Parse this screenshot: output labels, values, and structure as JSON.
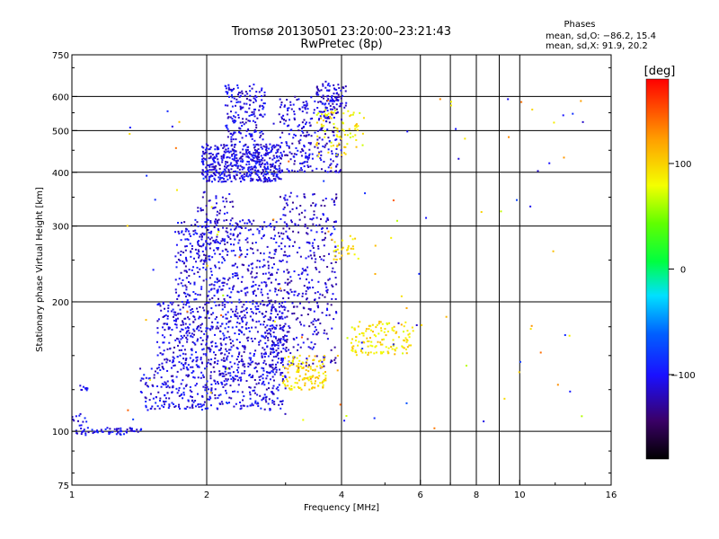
{
  "chart_data": {
    "type": "scatter",
    "title": "Tromsø 20130501 23:20:00–23:21:43",
    "subtitle": "RwPretec (8p)",
    "phases_title": "Phases",
    "phases_o": "mean, sd,O: −86.2, 15.4",
    "phases_x": "mean, sd,X:  91.9, 20.2",
    "xlabel": "Frequency [MHz]",
    "ylabel": "Stationary phase Virtual Height [km]",
    "x_scale": "log",
    "y_scale": "log",
    "xlim": [
      1,
      16
    ],
    "ylim": [
      75,
      750
    ],
    "grid": true,
    "x_ticks": [
      {
        "value": 1,
        "label": "1"
      },
      {
        "value": 2,
        "label": "2"
      },
      {
        "value": 4,
        "label": "4"
      },
      {
        "value": 6,
        "label": "6"
      },
      {
        "value": 8,
        "label": "8"
      },
      {
        "value": 10,
        "label": "10"
      },
      {
        "value": 16,
        "label": "16"
      }
    ],
    "x_grid_values": [
      2,
      4,
      6,
      7,
      8,
      9,
      10
    ],
    "y_ticks": [
      {
        "value": 75,
        "label": "75"
      },
      {
        "value": 100,
        "label": "100"
      },
      {
        "value": 200,
        "label": "200"
      },
      {
        "value": 300,
        "label": "300"
      },
      {
        "value": 400,
        "label": "400"
      },
      {
        "value": 500,
        "label": "500"
      },
      {
        "value": 600,
        "label": "600"
      },
      {
        "value": 750,
        "label": "750"
      }
    ],
    "y_grid_values": [
      100,
      200,
      300,
      400,
      500,
      600
    ],
    "colorbar": {
      "label": "[deg]",
      "range": [
        -180,
        180
      ],
      "ticks": [
        {
          "value": 100,
          "label": "100"
        },
        {
          "value": 0,
          "label": "0"
        },
        {
          "value": -100,
          "label": "−100"
        }
      ]
    },
    "clusters": [
      {
        "fmin": 1.02,
        "fmax": 1.45,
        "hmin": 98,
        "hmax": 102,
        "phase": -105,
        "count": 60
      },
      {
        "fmin": 1.0,
        "fmax": 1.08,
        "hmin": 103,
        "hmax": 110,
        "phase": -105,
        "count": 12
      },
      {
        "fmin": 1.04,
        "fmax": 1.1,
        "hmin": 124,
        "hmax": 128,
        "phase": -105,
        "count": 10
      },
      {
        "fmin": 1.42,
        "fmax": 3.0,
        "hmin": 112,
        "hmax": 140,
        "phase": -108,
        "count": 380
      },
      {
        "fmin": 1.55,
        "fmax": 3.0,
        "hmin": 140,
        "hmax": 200,
        "phase": -110,
        "count": 650
      },
      {
        "fmin": 1.7,
        "fmax": 2.9,
        "hmin": 200,
        "hmax": 310,
        "phase": -110,
        "count": 420
      },
      {
        "fmin": 1.9,
        "fmax": 2.3,
        "hmin": 250,
        "hmax": 360,
        "phase": -112,
        "count": 90
      },
      {
        "fmin": 2.9,
        "fmax": 3.9,
        "hmin": 140,
        "hmax": 360,
        "phase": -115,
        "count": 380
      },
      {
        "fmin": 1.95,
        "fmax": 2.95,
        "hmin": 380,
        "hmax": 465,
        "phase": -108,
        "count": 500
      },
      {
        "fmin": 2.2,
        "fmax": 2.7,
        "hmin": 470,
        "hmax": 640,
        "phase": -108,
        "count": 170
      },
      {
        "fmin": 2.9,
        "fmax": 4.0,
        "hmin": 400,
        "hmax": 600,
        "phase": -112,
        "count": 280
      },
      {
        "fmin": 3.5,
        "fmax": 4.1,
        "hmin": 560,
        "hmax": 650,
        "phase": -110,
        "count": 70
      },
      {
        "fmin": 2.95,
        "fmax": 3.7,
        "hmin": 125,
        "hmax": 150,
        "phase": 95,
        "count": 130
      },
      {
        "fmin": 4.2,
        "fmax": 5.8,
        "hmin": 150,
        "hmax": 180,
        "phase": 92,
        "count": 130
      },
      {
        "fmin": 3.5,
        "fmax": 4.5,
        "hmin": 430,
        "hmax": 560,
        "phase": 88,
        "count": 80
      },
      {
        "fmin": 3.8,
        "fmax": 4.3,
        "hmin": 250,
        "hmax": 285,
        "phase": 95,
        "count": 30
      },
      {
        "fmin": 1.3,
        "fmax": 14.0,
        "hmin": 95,
        "hmax": 620,
        "phase": 60,
        "count": 120,
        "spread": true
      }
    ]
  }
}
